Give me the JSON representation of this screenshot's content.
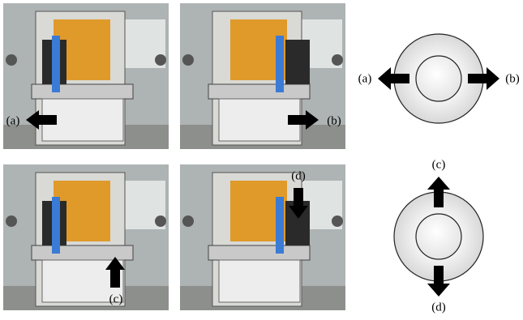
{
  "photos": [
    {
      "label": "(a)"
    },
    {
      "label": "(b)"
    },
    {
      "label": "(c)"
    },
    {
      "label": "(d)"
    }
  ],
  "diagrams": [
    {
      "labels": [
        "(a)",
        "(b)"
      ]
    },
    {
      "labels": [
        "(c)",
        "(d)"
      ]
    }
  ]
}
